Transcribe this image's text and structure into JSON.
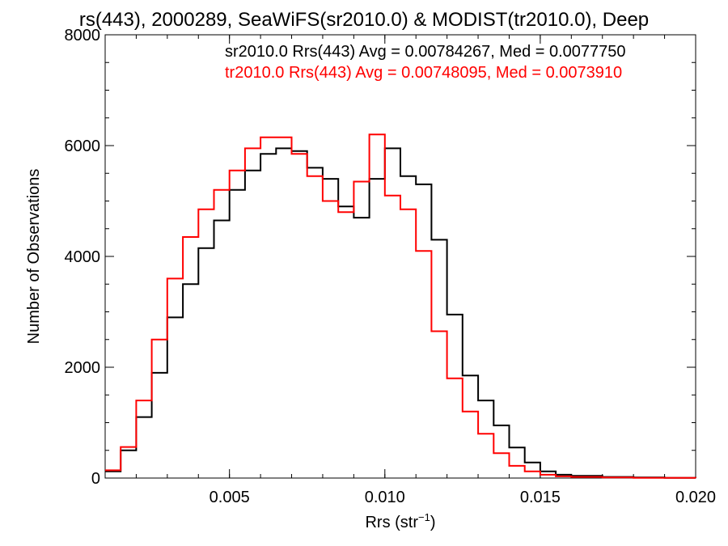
{
  "chart_data": {
    "type": "line",
    "title": "rs(443), 2000289, SeaWiFS(sr2010.0) & MODIST(tr2010.0), Deep",
    "xlabel": "Rrs (str",
    "xlabel_sup": "−1",
    "xlabel_close": ")",
    "ylabel": "Number of Observations",
    "xlim": [
      0.001,
      0.02
    ],
    "ylim": [
      0,
      8000
    ],
    "xticks": [
      0.005,
      0.01,
      0.015,
      0.02
    ],
    "xtick_labels": [
      "0.005",
      "0.010",
      "0.015",
      "0.020"
    ],
    "yticks": [
      0,
      2000,
      4000,
      6000,
      8000
    ],
    "ytick_labels": [
      "0",
      "2000",
      "4000",
      "6000",
      "8000"
    ],
    "grid": false,
    "legend_position": "top-right",
    "series": [
      {
        "name": "sr2010.0 Rrs(443) Avg = 0.00784267, Med = 0.0077750",
        "color": "#000000",
        "x": [
          0.001,
          0.0015,
          0.002,
          0.0025,
          0.003,
          0.0035,
          0.004,
          0.0045,
          0.005,
          0.0055,
          0.006,
          0.0065,
          0.007,
          0.0075,
          0.008,
          0.0085,
          0.009,
          0.0095,
          0.01,
          0.0105,
          0.011,
          0.0115,
          0.012,
          0.0125,
          0.013,
          0.0135,
          0.014,
          0.0145,
          0.015,
          0.0155,
          0.016,
          0.017,
          0.018,
          0.019,
          0.02
        ],
        "y": [
          120,
          500,
          1100,
          1900,
          2900,
          3500,
          4150,
          4650,
          5200,
          5550,
          5850,
          5950,
          5900,
          5600,
          5400,
          4900,
          4700,
          5400,
          5950,
          5450,
          5300,
          4300,
          2950,
          1850,
          1400,
          950,
          550,
          280,
          120,
          60,
          40,
          20,
          10,
          5,
          3
        ]
      },
      {
        "name": "tr2010.0 Rrs(443) Avg = 0.00748095, Med = 0.0073910",
        "color": "#ff0000",
        "x": [
          0.001,
          0.0015,
          0.002,
          0.0025,
          0.003,
          0.0035,
          0.004,
          0.0045,
          0.005,
          0.0055,
          0.006,
          0.0065,
          0.007,
          0.0075,
          0.008,
          0.0085,
          0.009,
          0.0095,
          0.01,
          0.0105,
          0.011,
          0.0115,
          0.012,
          0.0125,
          0.013,
          0.0135,
          0.014,
          0.0145,
          0.015,
          0.0155,
          0.016,
          0.017,
          0.018,
          0.019,
          0.02
        ],
        "y": [
          140,
          560,
          1400,
          2500,
          3600,
          4350,
          4850,
          5200,
          5550,
          5950,
          6150,
          6150,
          5850,
          5450,
          5000,
          4800,
          5350,
          6200,
          5100,
          4850,
          4100,
          2650,
          1800,
          1200,
          800,
          450,
          220,
          120,
          60,
          30,
          20,
          10,
          5,
          3,
          2
        ]
      }
    ]
  }
}
